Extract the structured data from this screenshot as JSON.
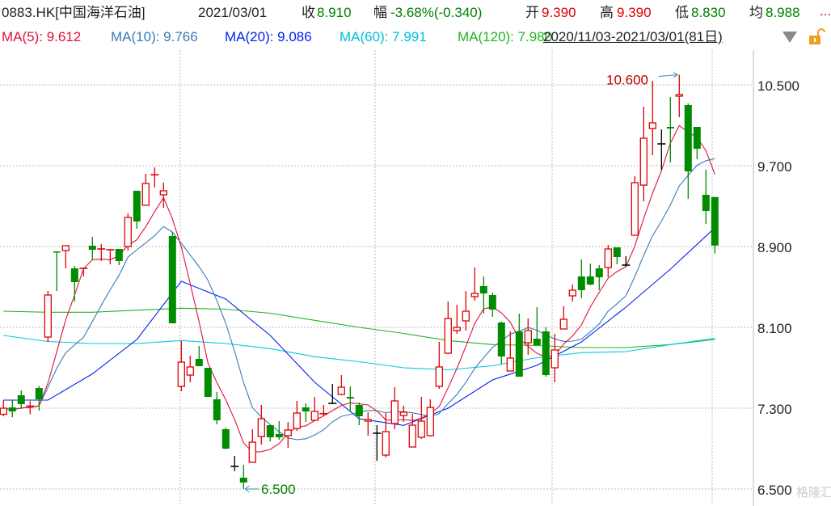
{
  "header": {
    "symbol": "0883.HK[中国海洋石油]",
    "date": "2021/03/01",
    "close_label": "收",
    "close": "8.910",
    "change_label": "幅",
    "change": "-3.68%(-0.340)",
    "open_label": "开",
    "open": "9.390",
    "high_label": "高",
    "high": "9.390",
    "low_label": "低",
    "low": "8.830",
    "avg_label": "均",
    "avg": "8.988",
    "more": "..."
  },
  "ma_bar": {
    "ma5": "MA(5): 9.612",
    "ma10": "MA(10): 9.766",
    "ma20": "MA(20): 9.086",
    "ma60": "MA(60): 7.991",
    "ma120": "MA(120): 7.980",
    "range": "2020/11/03-2021/03/01(81日)",
    "dropdown_icon": "triangle-down-icon",
    "lock_icon": "lock-open-icon"
  },
  "colors": {
    "up": "#e00000",
    "down": "#008c00",
    "doji": "#000000",
    "ma5": "#e0103c",
    "ma10": "#3a7ab8",
    "ma20": "#0022ee",
    "ma60": "#00c8e0",
    "ma120": "#22b422"
  },
  "watermark": "格隆汇",
  "chart_data": {
    "type": "candlestick",
    "ylim": [
      6.5,
      10.9
    ],
    "yticks": [
      "10.500",
      "9.700",
      "8.900",
      "8.100",
      "7.300",
      "6.500"
    ],
    "grid": true,
    "annotations": {
      "max": "10.600",
      "min": "6.500"
    },
    "ohlc": [
      [
        7.24,
        7.38,
        7.22,
        7.3
      ],
      [
        7.308,
        7.38,
        7.21,
        7.268
      ],
      [
        7.428,
        7.476,
        7.292,
        7.34
      ],
      [
        7.31,
        7.37,
        7.24,
        7.32
      ],
      [
        7.5,
        7.52,
        7.276,
        7.388
      ],
      [
        8.004,
        8.46,
        7.956,
        8.42
      ],
      [
        8.852,
        8.852,
        8.46,
        8.84
      ],
      [
        8.86,
        8.908,
        8.684,
        8.908
      ],
      [
        8.684,
        8.708,
        8.356,
        8.548
      ],
      [
        8.68,
        8.684,
        8.604,
        8.684
      ],
      [
        8.908,
        8.996,
        8.764,
        8.868
      ],
      [
        8.87,
        8.924,
        8.756,
        8.876
      ],
      [
        8.86,
        8.868,
        8.724,
        8.868
      ],
      [
        8.876,
        8.876,
        8.716,
        8.756
      ],
      [
        8.9,
        9.228,
        8.86,
        9.188
      ],
      [
        9.452,
        9.452,
        9.076,
        9.148
      ],
      [
        9.308,
        9.62,
        9.308,
        9.524
      ],
      [
        9.6,
        9.684,
        9.484,
        9.61
      ],
      [
        9.412,
        9.532,
        9.284,
        9.452
      ],
      [
        9.004,
        9.044,
        8.14,
        8.14
      ],
      [
        7.516,
        7.964,
        7.468,
        7.756
      ],
      [
        7.628,
        7.82,
        7.556,
        7.708
      ],
      [
        7.788,
        7.916,
        7.716,
        7.716
      ],
      [
        7.7,
        7.7,
        7.412,
        7.412
      ],
      [
        7.388,
        7.46,
        7.14,
        7.18
      ],
      [
        7.092,
        7.108,
        6.892,
        6.9
      ],
      [
        6.724,
        6.828,
        6.676,
        6.724
      ],
      [
        6.612,
        6.74,
        6.5,
        6.564
      ],
      [
        6.764,
        7.092,
        6.764,
        6.964
      ],
      [
        7.02,
        7.332,
        6.94,
        7.196
      ],
      [
        7.132,
        7.132,
        6.972,
        7.012
      ],
      [
        7.044,
        7.172,
        6.988,
        7.012
      ],
      [
        7.028,
        7.164,
        6.908,
        7.084
      ],
      [
        7.1,
        7.372,
        7.076,
        7.252
      ],
      [
        7.308,
        7.348,
        7.164,
        7.268
      ],
      [
        7.18,
        7.412,
        7.18,
        7.268
      ],
      [
        7.24,
        7.332,
        7.22,
        7.246
      ],
      [
        7.348,
        7.54,
        7.348,
        7.348
      ],
      [
        7.436,
        7.628,
        7.428,
        7.508
      ],
      [
        7.412,
        7.516,
        7.276,
        7.396
      ],
      [
        7.332,
        7.356,
        7.132,
        7.22
      ],
      [
        7.172,
        7.26,
        7.028,
        7.188
      ],
      [
        7.052,
        7.132,
        6.78,
        7.052
      ],
      [
        6.836,
        7.252,
        6.812,
        7.068
      ],
      [
        7.148,
        7.508,
        7.092,
        7.372
      ],
      [
        7.228,
        7.324,
        7.164,
        7.26
      ],
      [
        6.916,
        7.244,
        6.916,
        7.132
      ],
      [
        7.012,
        7.412,
        6.996,
        7.172
      ],
      [
        7.028,
        7.388,
        7.02,
        7.308
      ],
      [
        7.516,
        7.956,
        7.492,
        7.708
      ],
      [
        7.844,
        8.356,
        7.836,
        8.188
      ],
      [
        8.068,
        8.324,
        8.036,
        8.1
      ],
      [
        8.164,
        8.46,
        8.068,
        8.26
      ],
      [
        8.404,
        8.692,
        8.364,
        8.436
      ],
      [
        8.508,
        8.604,
        8.236,
        8.436
      ],
      [
        8.42,
        8.444,
        8.204,
        8.276
      ],
      [
        8.148,
        8.156,
        7.732,
        7.812
      ],
      [
        7.668,
        8.06,
        7.668,
        7.796
      ],
      [
        8.06,
        8.236,
        7.612,
        7.612
      ],
      [
        7.948,
        8.188,
        7.828,
        8.068
      ],
      [
        7.988,
        8.3,
        7.924,
        7.924
      ],
      [
        8.06,
        8.1,
        7.612,
        7.628
      ],
      [
        7.7,
        8.036,
        7.556,
        7.876
      ],
      [
        8.084,
        8.308,
        8.084,
        8.18
      ],
      [
        8.412,
        8.524,
        8.356,
        8.468
      ],
      [
        8.604,
        8.772,
        8.388,
        8.468
      ],
      [
        8.604,
        8.732,
        8.516,
        8.524
      ],
      [
        8.684,
        8.716,
        8.468,
        8.596
      ],
      [
        8.692,
        8.916,
        8.596,
        8.876
      ],
      [
        8.892,
        8.892,
        8.724,
        8.796
      ],
      [
        8.716,
        8.804,
        8.7,
        8.716
      ],
      [
        9.012,
        9.596,
        9.012,
        9.532
      ],
      [
        9.508,
        10.284,
        9.348,
        9.972
      ],
      [
        10.068,
        10.54,
        9.804,
        10.124
      ],
      [
        9.916,
        10.06,
        9.66,
        9.916
      ],
      [
        10.084,
        10.38,
        9.732,
        10.068
      ],
      [
        10.388,
        10.6,
        10.18,
        10.404
      ],
      [
        10.3,
        10.316,
        9.372,
        9.644
      ],
      [
        10.084,
        10.084,
        9.764,
        9.868
      ],
      [
        9.412,
        9.66,
        9.124,
        9.252
      ],
      [
        9.39,
        9.39,
        8.83,
        8.91
      ]
    ],
    "series": [
      {
        "name": "MA(20)",
        "values": [
          7.38,
          7.38,
          7.64,
          7.98,
          8.556,
          8.38,
          8.02,
          7.556,
          7.196,
          7.13,
          7.3,
          7.58,
          7.724,
          7.956,
          8.3,
          8.676,
          9.086
        ]
      },
      {
        "name": "MA(60)",
        "values": [
          8.02,
          7.96,
          7.94,
          7.94,
          7.97,
          7.94,
          7.89,
          7.81,
          7.76,
          7.7,
          7.68,
          7.72,
          7.8,
          7.85,
          7.86,
          7.93,
          7.991
        ]
      },
      {
        "name": "MA(120)",
        "values": [
          8.26,
          8.25,
          8.25,
          8.27,
          8.29,
          8.28,
          8.24,
          8.17,
          8.1,
          8.04,
          7.97,
          7.93,
          7.92,
          7.9,
          7.9,
          7.93,
          7.98
        ]
      }
    ]
  }
}
